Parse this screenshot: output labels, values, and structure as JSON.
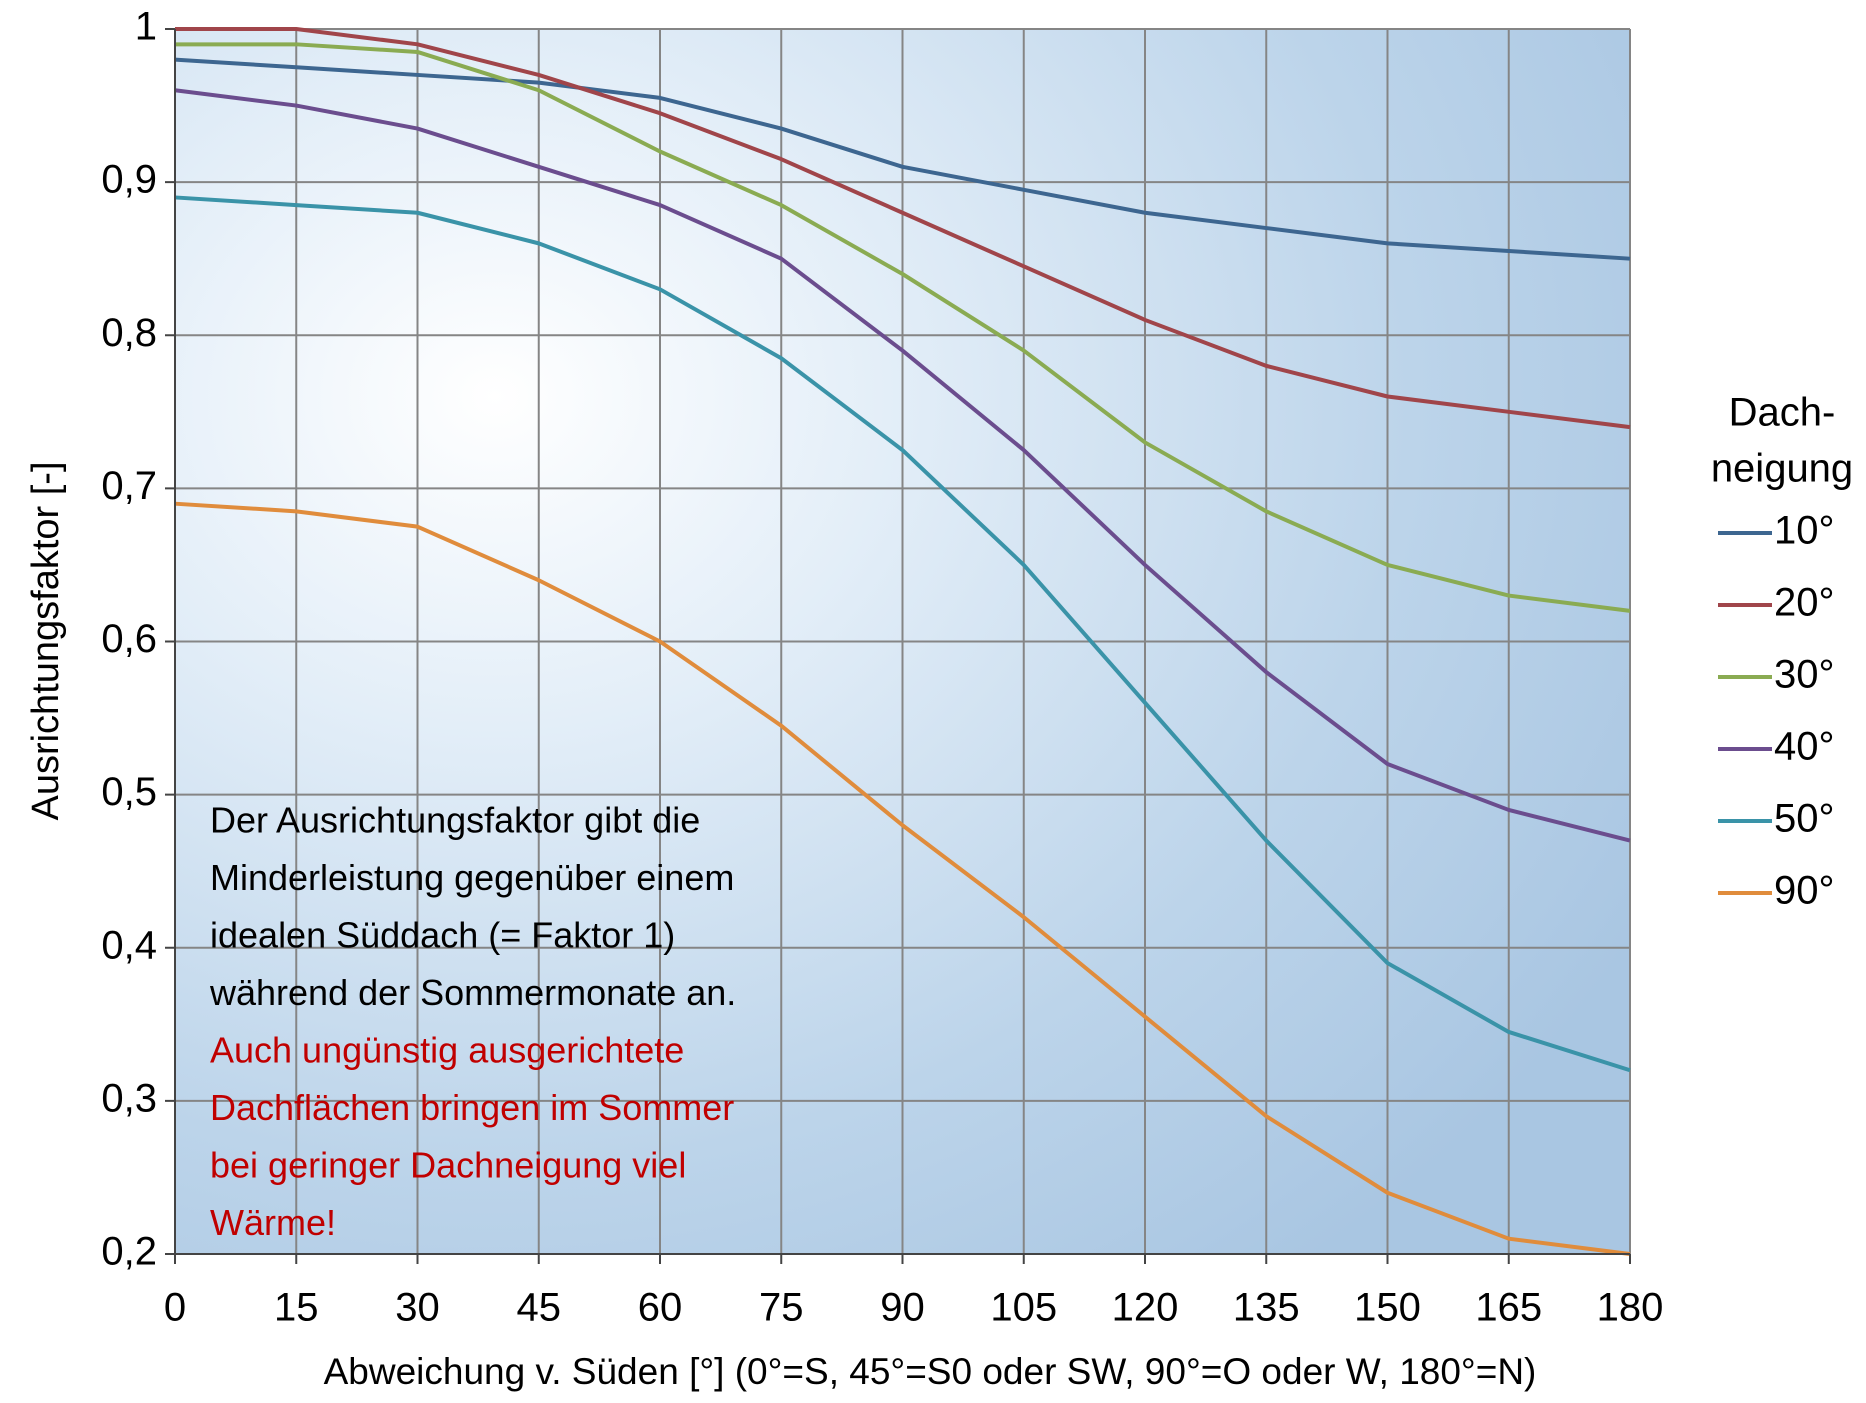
{
  "chart_data": {
    "type": "line",
    "y_label": "Ausrichtungsfaktor [-]",
    "x_label": "Abweichung v. Süden [°] (0°=S, 45°=S0 oder SW, 90°=O oder W, 180°=N)",
    "x": [
      0,
      15,
      30,
      45,
      60,
      75,
      90,
      105,
      120,
      135,
      150,
      165,
      180
    ],
    "xlim": [
      0,
      180
    ],
    "xticks": [
      0,
      15,
      30,
      45,
      60,
      75,
      90,
      105,
      120,
      135,
      150,
      165,
      180
    ],
    "ylim": [
      0.2,
      1
    ],
    "yticks": [
      {
        "value": 0.2,
        "label": "0,2"
      },
      {
        "value": 0.3,
        "label": "0,3"
      },
      {
        "value": 0.4,
        "label": "0,4"
      },
      {
        "value": 0.5,
        "label": "0,5"
      },
      {
        "value": 0.6,
        "label": "0,6"
      },
      {
        "value": 0.7,
        "label": "0,7"
      },
      {
        "value": 0.8,
        "label": "0,8"
      },
      {
        "value": 0.9,
        "label": "0,9"
      },
      1
    ],
    "grid": true,
    "legend_title": [
      "Dach-",
      "neigung"
    ],
    "legend_position": "right",
    "series": [
      {
        "name": "10°",
        "color": "#3d6690",
        "values": [
          0.98,
          0.975,
          0.97,
          0.965,
          0.955,
          0.935,
          0.91,
          0.895,
          0.88,
          0.87,
          0.86,
          0.855,
          0.85
        ]
      },
      {
        "name": "20°",
        "color": "#a0454a",
        "values": [
          1,
          1,
          0.99,
          0.97,
          0.945,
          0.915,
          0.88,
          0.845,
          0.81,
          0.78,
          0.76,
          0.75,
          0.74
        ]
      },
      {
        "name": "30°",
        "color": "#8aab52",
        "values": [
          0.99,
          0.99,
          0.985,
          0.96,
          0.92,
          0.885,
          0.84,
          0.79,
          0.73,
          0.685,
          0.65,
          0.63,
          0.62
        ]
      },
      {
        "name": "40°",
        "color": "#6b4d8e",
        "values": [
          0.96,
          0.95,
          0.935,
          0.91,
          0.885,
          0.85,
          0.79,
          0.725,
          0.65,
          0.58,
          0.52,
          0.49,
          0.47
        ]
      },
      {
        "name": "50°",
        "color": "#3a93a8",
        "values": [
          0.89,
          0.885,
          0.88,
          0.86,
          0.83,
          0.785,
          0.725,
          0.65,
          0.56,
          0.47,
          0.39,
          0.345,
          0.32
        ]
      },
      {
        "name": "90°",
        "color": "#e08c3c",
        "values": [
          0.69,
          0.685,
          0.675,
          0.64,
          0.6,
          0.545,
          0.48,
          0.42,
          0.355,
          0.29,
          0.24,
          0.21,
          0.2
        ]
      }
    ],
    "annotation": {
      "lines": [
        "Der Ausrichtungsfaktor gibt die",
        "Minderleistung  gegenüber einem",
        "idealen Süddach (= Faktor 1)",
        "während der Sommermonate an."
      ],
      "highlight_lines": [
        "Auch ungünstig ausgerichtete",
        "Dachflächen bringen im Sommer",
        "bei geringer Dachneigung viel",
        "Wärme!"
      ],
      "highlight_color": "#c00000"
    }
  }
}
